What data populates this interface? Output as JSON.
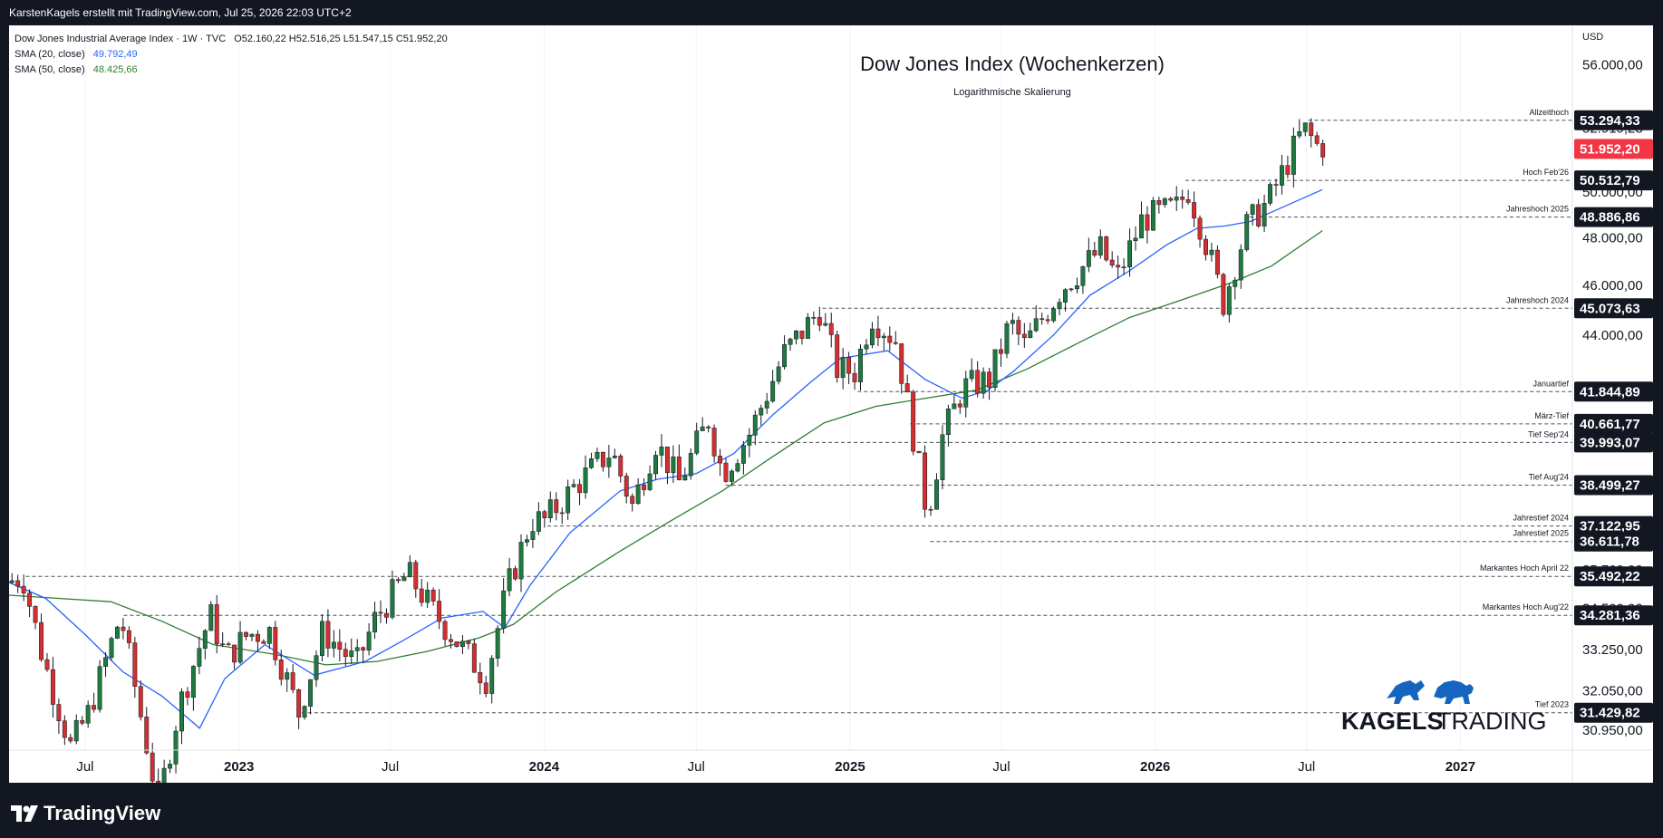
{
  "header": {
    "text": "KarstenKagels erstellt mit TradingView.com, Jul 25, 2026 22:03 UTC+2"
  },
  "footer": {
    "logo_text": "TradingView"
  },
  "legend": {
    "symbol": "Dow Jones Industrial Average Index · 1W · TVC",
    "ohlc": "O52.160,22  H52.516,25  L51.547,15  C51.952,20",
    "sma20_label": "SMA (20, close)",
    "sma20_value": "49.792,49",
    "sma50_label": "SMA (50, close)",
    "sma50_value": "48.425,66"
  },
  "watermark": {
    "brand_a": "KAGELS",
    "brand_b": "TRADING"
  },
  "colors": {
    "up": "#26a69a",
    "down": "#ef5350",
    "candle_up": "#1e7a3e",
    "candle_down": "#d32f2f",
    "sma20": "#2962ff",
    "sma50": "#2e7d32",
    "brand_blue": "#1565c0",
    "dark_label": "#131722",
    "last_price": "#f23645"
  },
  "chart_data": {
    "type": "candlestick",
    "title": "Dow Jones Index (Wochenkerzen)",
    "subtitle": "Logarithmische Skalierung",
    "currency_label": "USD",
    "y_scale": "log",
    "ylim": [
      30400,
      58000
    ],
    "x_range": [
      "2022-04-01",
      "2027-05-15"
    ],
    "x_ticks": [
      {
        "label": "Jul",
        "date": "2022-07-01",
        "bold": false
      },
      {
        "label": "2023",
        "date": "2023-01-01",
        "bold": true
      },
      {
        "label": "Jul",
        "date": "2023-07-01",
        "bold": false
      },
      {
        "label": "2024",
        "date": "2024-01-01",
        "bold": true
      },
      {
        "label": "Jul",
        "date": "2024-07-01",
        "bold": false
      },
      {
        "label": "2025",
        "date": "2025-01-01",
        "bold": true
      },
      {
        "label": "Jul",
        "date": "2025-07-01",
        "bold": false
      },
      {
        "label": "2026",
        "date": "2026-01-01",
        "bold": true
      },
      {
        "label": "Jul",
        "date": "2026-07-01",
        "bold": false
      },
      {
        "label": "2027",
        "date": "2027-01-01",
        "bold": true
      }
    ],
    "y_ticks": [
      {
        "value": 56000,
        "label": "56.000,00"
      },
      {
        "value": 48000,
        "label": "48.000,00"
      },
      {
        "value": 46000,
        "label": "46.000,00"
      },
      {
        "value": 44000,
        "label": "44.000,00"
      },
      {
        "value": 33250,
        "label": "33.250,00"
      },
      {
        "value": 32050,
        "label": "32.050,00"
      }
    ],
    "levels": [
      {
        "name": "Allzeithoch",
        "value": 53294.33,
        "label": "53.294,33",
        "start": "2026-07-03"
      },
      {
        "name": "Hoch Feb'26",
        "value": 50512.79,
        "label": "50.512,79",
        "start": "2026-02-06"
      },
      {
        "name": "Jahreshoch 2025",
        "value": 48886.86,
        "label": "48.886,86",
        "start": "2026-04-24"
      },
      {
        "name": "Jahreshoch 2024",
        "value": 45073.63,
        "label": "45.073,63",
        "start": "2024-11-29"
      },
      {
        "name": "Januartief",
        "value": 41844.89,
        "label": "41.844,89",
        "start": "2025-01-10"
      },
      {
        "name": "März-Tief",
        "value": 40661.77,
        "label": "40.661,77",
        "start": "2025-03-14"
      },
      {
        "name": "Tief Sep'24",
        "value": 39993.07,
        "label": "39.993,07",
        "start": "2024-09-06"
      },
      {
        "name": "Tief Aug'24",
        "value": 38499.27,
        "label": "38.499,27",
        "start": "2024-08-05"
      },
      {
        "name": "Jahrestief 2024",
        "value": 37122.95,
        "label": "37.122,95",
        "start": "2024-01-05"
      },
      {
        "name": "Jahrestief 2025",
        "value": 36611.78,
        "label": "36.611,78",
        "start": "2025-04-07"
      },
      {
        "name": "Markantes Hoch April 22",
        "value": 35492.22,
        "label": "35.492,22",
        "start": "2022-04-21"
      },
      {
        "name": "Markantes Hoch Aug'22",
        "value": 34281.36,
        "label": "34.281,36",
        "start": "2022-08-16"
      },
      {
        "name": "Tief 2023",
        "value": 31429.82,
        "label": "31.429,82",
        "start": "2023-03-17"
      }
    ],
    "partial_labels": [
      {
        "value": 52919.28,
        "label": "52.919,28"
      },
      {
        "value": 50000,
        "label": "50.000,00"
      },
      {
        "value": 35700,
        "label": "35.700,00"
      },
      {
        "value": 34500,
        "label": "34.500,00"
      },
      {
        "value": 30950,
        "label": "30.950,00"
      }
    ],
    "last_price": {
      "value": 51952.2,
      "label": "51.952,20"
    },
    "series": [
      {
        "name": "SMA (20, close)",
        "kind": "sma20"
      },
      {
        "name": "SMA (50, close)",
        "kind": "sma50"
      },
      {
        "name": "Dow Jones Industrial Average Index",
        "kind": "candles"
      }
    ],
    "sma20_points": [
      [
        "2022-04-01",
        35300
      ],
      [
        "2022-05-15",
        34800
      ],
      [
        "2022-07-01",
        33700
      ],
      [
        "2022-08-15",
        32600
      ],
      [
        "2022-10-01",
        31900
      ],
      [
        "2022-11-15",
        31000
      ],
      [
        "2022-12-15",
        32400
      ],
      [
        "2023-02-01",
        33400
      ],
      [
        "2023-04-01",
        32500
      ],
      [
        "2023-06-01",
        32900
      ],
      [
        "2023-07-15",
        33500
      ],
      [
        "2023-09-01",
        34200
      ],
      [
        "2023-10-20",
        34400
      ],
      [
        "2023-11-15",
        33900
      ],
      [
        "2023-12-15",
        35200
      ],
      [
        "2024-02-01",
        36900
      ],
      [
        "2024-04-01",
        38300
      ],
      [
        "2024-05-15",
        38700
      ],
      [
        "2024-07-01",
        38900
      ],
      [
        "2024-08-15",
        39600
      ],
      [
        "2024-10-01",
        41000
      ],
      [
        "2024-11-15",
        42200
      ],
      [
        "2024-12-20",
        43100
      ],
      [
        "2025-02-15",
        43400
      ],
      [
        "2025-04-01",
        42300
      ],
      [
        "2025-05-15",
        41600
      ],
      [
        "2025-06-15",
        41900
      ],
      [
        "2025-07-15",
        42600
      ],
      [
        "2025-09-01",
        44000
      ],
      [
        "2025-10-15",
        45600
      ],
      [
        "2025-12-01",
        46600
      ],
      [
        "2026-01-15",
        47700
      ],
      [
        "2026-02-20",
        48400
      ],
      [
        "2026-03-25",
        48500
      ],
      [
        "2026-04-25",
        48700
      ],
      [
        "2026-06-01",
        49300
      ],
      [
        "2026-07-20",
        50100
      ]
    ],
    "sma50_points": [
      [
        "2022-04-01",
        34900
      ],
      [
        "2022-06-01",
        34800
      ],
      [
        "2022-08-01",
        34700
      ],
      [
        "2022-10-01",
        34100
      ],
      [
        "2022-12-01",
        33400
      ],
      [
        "2023-02-15",
        33100
      ],
      [
        "2023-04-15",
        32800
      ],
      [
        "2023-06-15",
        32900
      ],
      [
        "2023-08-15",
        33200
      ],
      [
        "2023-10-15",
        33600
      ],
      [
        "2023-11-25",
        34000
      ],
      [
        "2024-01-15",
        35000
      ],
      [
        "2024-04-01",
        36300
      ],
      [
        "2024-06-01",
        37300
      ],
      [
        "2024-08-01",
        38300
      ],
      [
        "2024-10-01",
        39500
      ],
      [
        "2024-12-01",
        40700
      ],
      [
        "2025-02-01",
        41300
      ],
      [
        "2025-04-01",
        41600
      ],
      [
        "2025-06-01",
        41900
      ],
      [
        "2025-08-01",
        42700
      ],
      [
        "2025-10-01",
        43700
      ],
      [
        "2025-12-01",
        44700
      ],
      [
        "2026-02-01",
        45400
      ],
      [
        "2026-04-01",
        46100
      ],
      [
        "2026-05-20",
        46800
      ],
      [
        "2026-07-20",
        48300
      ]
    ],
    "candle_anchors": [
      [
        "2022-04-01",
        35300
      ],
      [
        "2022-04-21",
        35492
      ],
      [
        "2022-05-15",
        33000
      ],
      [
        "2022-06-17",
        30500
      ],
      [
        "2022-07-08",
        31400
      ],
      [
        "2022-08-16",
        34281
      ],
      [
        "2022-09-30",
        29000
      ],
      [
        "2022-10-25",
        31600
      ],
      [
        "2022-12-01",
        34300
      ],
      [
        "2022-12-20",
        33000
      ],
      [
        "2023-01-15",
        33700
      ],
      [
        "2023-02-10",
        33800
      ],
      [
        "2023-03-17",
        31429
      ],
      [
        "2023-04-15",
        33800
      ],
      [
        "2023-05-25",
        32800
      ],
      [
        "2023-06-15",
        34100
      ],
      [
        "2023-07-25",
        35600
      ],
      [
        "2023-08-25",
        34400
      ],
      [
        "2023-10-27",
        32400
      ],
      [
        "2023-11-20",
        35000
      ],
      [
        "2023-12-20",
        37300
      ],
      [
        "2024-01-05",
        37300
      ],
      [
        "2024-02-15",
        38600
      ],
      [
        "2024-03-25",
        39700
      ],
      [
        "2024-04-19",
        37800
      ],
      [
        "2024-05-17",
        40000
      ],
      [
        "2024-06-14",
        38600
      ],
      [
        "2024-07-19",
        40800
      ],
      [
        "2024-08-05",
        38900
      ],
      [
        "2024-09-06",
        40300
      ],
      [
        "2024-10-18",
        43300
      ],
      [
        "2024-11-29",
        45000
      ],
      [
        "2024-12-20",
        42700
      ],
      [
        "2025-01-10",
        42600
      ],
      [
        "2025-01-30",
        44800
      ],
      [
        "2025-02-28",
        43800
      ],
      [
        "2025-03-14",
        41400
      ],
      [
        "2025-04-07",
        37500
      ],
      [
        "2025-04-25",
        40200
      ],
      [
        "2025-05-20",
        42000
      ],
      [
        "2025-06-20",
        42300
      ],
      [
        "2025-07-15",
        44500
      ],
      [
        "2025-08-01",
        43600
      ],
      [
        "2025-09-15",
        45900
      ],
      [
        "2025-10-31",
        47500
      ],
      [
        "2025-11-20",
        46300
      ],
      [
        "2025-12-20",
        48800
      ],
      [
        "2026-01-30",
        49300
      ],
      [
        "2026-02-13",
        50100
      ],
      [
        "2026-03-01",
        48400
      ],
      [
        "2026-03-27",
        45300
      ],
      [
        "2026-04-24",
        48500
      ],
      [
        "2026-05-20",
        49600
      ],
      [
        "2026-06-10",
        51200
      ],
      [
        "2026-06-26",
        52500
      ],
      [
        "2026-07-03",
        52800
      ],
      [
        "2026-07-17",
        52100
      ]
    ]
  }
}
